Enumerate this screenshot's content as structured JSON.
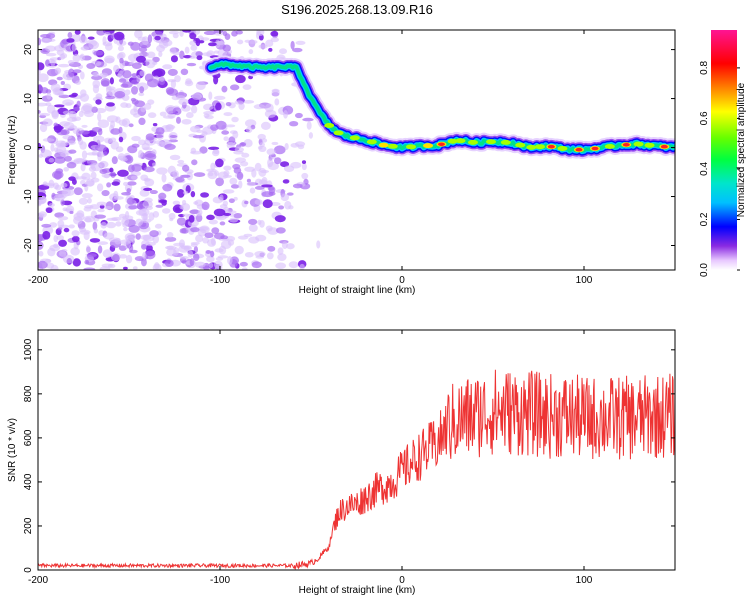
{
  "title": "S196.2025.268.13.09.R16",
  "chart_data": [
    {
      "type": "heatmap",
      "name": "spectrogram",
      "xlabel": "Height of straight line (km)",
      "ylabel": "Frequency (Hz)",
      "xlim": [
        -200,
        150
      ],
      "ylim": [
        -25,
        24
      ],
      "xticks": [
        -200,
        -100,
        0,
        100
      ],
      "yticks": [
        -20,
        -10,
        0,
        10,
        20
      ],
      "ytick_labels": [
        "-20",
        "-10",
        "0",
        "10",
        "20"
      ],
      "ridge": {
        "x": [
          -105,
          -97,
          -85,
          -75,
          -65,
          -58,
          -55,
          -50,
          -45,
          -40,
          -35,
          -30,
          -20,
          -10,
          0,
          10,
          20,
          30,
          40,
          50,
          60,
          70,
          80,
          90,
          100,
          110,
          120,
          130,
          140,
          150
        ],
        "freq": [
          16.5,
          17.0,
          16.5,
          16.3,
          16.5,
          16.3,
          14.0,
          10.0,
          7.0,
          4.5,
          3.0,
          2.3,
          1.5,
          0.5,
          0.0,
          0.3,
          0.5,
          1.5,
          1.0,
          1.2,
          1.0,
          0.0,
          0.3,
          -0.3,
          -0.5,
          0.0,
          0.5,
          0.7,
          0.3,
          0.0
        ]
      },
      "noise_region_x": [
        -200,
        -60
      ],
      "colorbar": {
        "label": "Normalized spectral amplitude",
        "ticks": [
          "0.0",
          "0.2",
          "0.4",
          "0.6",
          "0.8"
        ],
        "range": [
          0,
          0.95
        ]
      }
    },
    {
      "type": "line",
      "name": "snr",
      "xlabel": "Height of straight line (km)",
      "ylabel": "SNR (10 * v/v)",
      "xlim": [
        -200,
        150
      ],
      "ylim": [
        0,
        1090
      ],
      "xticks": [
        -200,
        -100,
        0,
        100
      ],
      "yticks": [
        0,
        200,
        400,
        600,
        800,
        1000
      ],
      "color": "#ee3333",
      "series": [
        {
          "name": "SNR",
          "x": [
            -200,
            -150,
            -100,
            -60,
            -50,
            -45,
            -40,
            -38,
            -35,
            -30,
            -25,
            -20,
            -15,
            -10,
            -5,
            0,
            10,
            20,
            25,
            30,
            40,
            50,
            60,
            70,
            80,
            90,
            100,
            110,
            120,
            130,
            140,
            150
          ],
          "values": [
            20,
            20,
            20,
            20,
            30,
            60,
            110,
            180,
            260,
            290,
            300,
            330,
            360,
            380,
            400,
            450,
            520,
            580,
            650,
            680,
            700,
            720,
            720,
            710,
            700,
            700,
            690,
            690,
            690,
            690,
            700,
            700
          ]
        }
      ]
    }
  ]
}
